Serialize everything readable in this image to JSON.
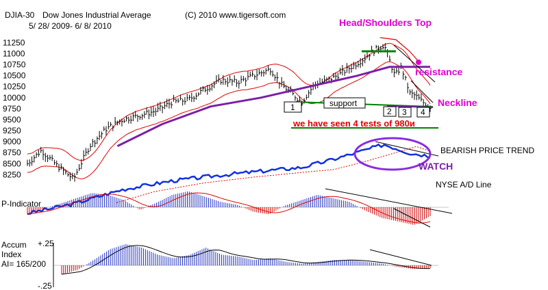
{
  "header": {
    "symbol": "DJIA-30",
    "name": "Dow Jones Industrial Average",
    "copyright": "(C) 2010 www.tigersoft.com",
    "date_range": "5/ 28/ 2009- 6/ 8/ 2010"
  },
  "annotations": {
    "pattern": "Head/Shoulders Top",
    "resistance": "resistance",
    "neckline": "Neckline",
    "support": "support",
    "tests": "we have seen 4 tests of 980и",
    "test_markers": [
      "1",
      "2",
      "3",
      "4"
    ],
    "bearish": "BEARISH PRICE TREND",
    "watch": "WATCH",
    "ad_line": "NYSE A/D Line"
  },
  "panels": {
    "p_indicator_label": "P-Indicator",
    "accum_label_1": "Accum",
    "accum_label_2": "Index",
    "accum_label_3": "AI= 165/200",
    "accum_ticks": [
      "+.25",
      "-.25"
    ]
  },
  "colors": {
    "price_bars": "#000000",
    "ma_red": "#e00000",
    "ma_purple": "#7a1fa8",
    "ad_line": "#1030e0",
    "hist_blue": "#2030c0",
    "hist_red": "#d00000",
    "magenta": "#e000d0",
    "support_green": "#008000"
  },
  "chart_data": [
    {
      "type": "line",
      "title": "Dow Jones Industrial Average",
      "x_range": [
        "2009-05-28",
        "2010-06-08"
      ],
      "y_ticks": [
        8250,
        8500,
        8750,
        9000,
        9250,
        9500,
        9750,
        10000,
        10250,
        10500,
        10750,
        11000,
        11250
      ],
      "ylim": [
        8100,
        11350
      ],
      "series": [
        {
          "id": "price",
          "x": [
            "2009-05-28",
            "2009-06-10",
            "2009-06-25",
            "2009-07-10",
            "2009-07-25",
            "2009-08-10",
            "2009-08-25",
            "2009-09-10",
            "2009-09-25",
            "2009-10-10",
            "2009-10-25",
            "2009-11-10",
            "2009-11-25",
            "2009-12-10",
            "2009-12-25",
            "2010-01-10",
            "2010-01-20",
            "2010-02-01",
            "2010-02-08",
            "2010-02-20",
            "2010-03-05",
            "2010-03-20",
            "2010-04-05",
            "2010-04-15",
            "2010-04-26",
            "2010-05-06",
            "2010-05-12",
            "2010-05-20",
            "2010-05-25",
            "2010-06-01",
            "2010-06-08"
          ],
          "values": [
            8500,
            8800,
            8450,
            8150,
            8900,
            9300,
            9500,
            9600,
            9700,
            9900,
            9950,
            10200,
            10400,
            10350,
            10500,
            10650,
            10300,
            10050,
            9900,
            10300,
            10400,
            10600,
            10850,
            11050,
            11200,
            10500,
            10700,
            10100,
            10050,
            9900,
            9800
          ]
        },
        {
          "id": "ma_purple",
          "x": [
            "2009-08-20",
            "2009-10-01",
            "2009-11-15",
            "2010-01-01",
            "2010-02-15",
            "2010-04-01",
            "2010-05-01",
            "2010-06-08"
          ],
          "values": [
            8900,
            9400,
            9800,
            10000,
            10250,
            10500,
            10700,
            10700
          ]
        }
      ],
      "annotation_levels": {
        "neckline": 9750,
        "support": 9800
      }
    },
    {
      "type": "line",
      "title": "NYSE A/D Line",
      "series": [
        {
          "id": "ad_line",
          "x": [
            "2009-05-28",
            "2009-07-10",
            "2009-08-25",
            "2009-10-10",
            "2009-11-25",
            "2010-01-10",
            "2010-02-08",
            "2010-03-05",
            "2010-04-05",
            "2010-04-26",
            "2010-05-20",
            "2010-06-08"
          ],
          "values": [
            0,
            10,
            25,
            34,
            40,
            45,
            48,
            55,
            65,
            72,
            63,
            60
          ]
        }
      ]
    },
    {
      "type": "bar",
      "title": "P-Indicator",
      "series": [
        {
          "id": "p_indicator",
          "values": [
            -8,
            -2,
            4,
            10,
            16,
            14,
            8,
            -3,
            5,
            14,
            18,
            12,
            6,
            3,
            -5,
            -8,
            2,
            8,
            14,
            10,
            6,
            -4,
            -12,
            -16,
            -20,
            -10
          ]
        }
      ]
    },
    {
      "type": "bar",
      "title": "Accum Index",
      "y_ticks": [
        "+.25",
        "-.25"
      ],
      "ylim": [
        -0.25,
        0.25
      ],
      "series": [
        {
          "id": "accum_index",
          "values": [
            -0.1,
            -0.05,
            0.06,
            0.18,
            0.24,
            0.2,
            0.12,
            0.08,
            0.12,
            0.2,
            0.12,
            0.1,
            0.06,
            0.08,
            0.04,
            0.02,
            0.04,
            0.06,
            0.06,
            0.04,
            0.02,
            -0.02,
            -0.04,
            -0.03
          ]
        }
      ]
    }
  ]
}
